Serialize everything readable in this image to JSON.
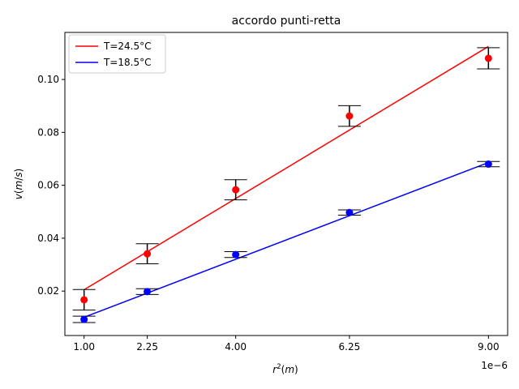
{
  "chart_data": {
    "type": "scatter",
    "title": "accordo punti-retta",
    "xlabel": "r²(m)",
    "ylabel": "v(m/s)",
    "x_offset_label": "1e−6",
    "xlim": [
      0.62,
      9.38
    ],
    "ylim": [
      0.0032,
      0.1178
    ],
    "x_ticks": [
      1.0,
      2.25,
      4.0,
      6.25,
      9.0
    ],
    "x_tick_labels": [
      "1.00",
      "2.25",
      "4.00",
      "6.25",
      "9.00"
    ],
    "y_ticks": [
      0.02,
      0.04,
      0.06,
      0.08,
      0.1
    ],
    "y_tick_labels": [
      "0.02",
      "0.04",
      "0.06",
      "0.08",
      "0.10"
    ],
    "grid": false,
    "legend_position": "top-left",
    "series": [
      {
        "name": "T=24.5°C",
        "color": "#ff0000",
        "line_color": "#ff0000",
        "x": [
          1.0,
          2.25,
          4.0,
          6.25,
          9.0
        ],
        "y": [
          0.0167,
          0.0341,
          0.0583,
          0.0862,
          0.108
        ],
        "err": [
          0.0039,
          0.0038,
          0.0038,
          0.0039,
          0.004
        ],
        "fit": [
          [
            1.0,
            0.0205
          ],
          [
            9.0,
            0.1125
          ]
        ]
      },
      {
        "name": "T=18.5°C",
        "color": "#0000ff",
        "line_color": "#0000ff",
        "x": [
          1.0,
          2.25,
          4.0,
          6.25,
          9.0
        ],
        "y": [
          0.0093,
          0.0198,
          0.0338,
          0.0497,
          0.068
        ],
        "err": [
          0.0012,
          0.0011,
          0.0011,
          0.001,
          0.001
        ],
        "fit": [
          [
            1.0,
            0.0101
          ],
          [
            9.0,
            0.0686
          ]
        ]
      }
    ]
  }
}
